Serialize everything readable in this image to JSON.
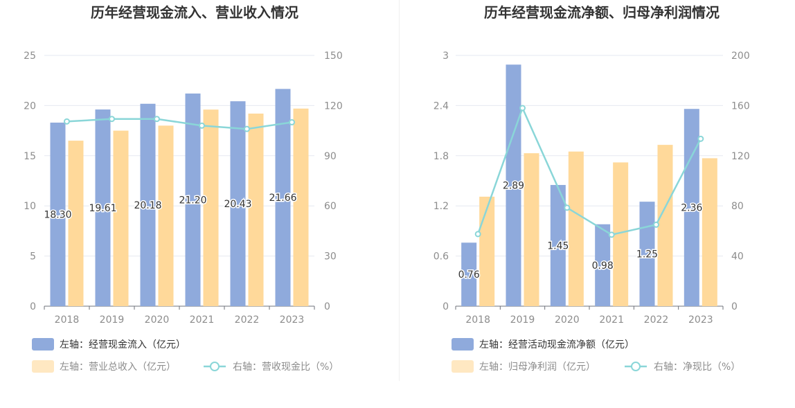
{
  "charts": [
    {
      "title": "历年经营现金流入、营业收入情况",
      "chart_data": {
        "type": "bar",
        "categories": [
          "2018",
          "2019",
          "2020",
          "2021",
          "2022",
          "2023"
        ],
        "left_axis": {
          "ylim": [
            0,
            25
          ],
          "ticks": [
            "0",
            "5",
            "10",
            "15",
            "20",
            "25"
          ]
        },
        "right_axis": {
          "ylim": [
            0,
            150
          ],
          "ticks": [
            "0",
            "30",
            "60",
            "90",
            "120",
            "150"
          ]
        },
        "grid": true,
        "legend_position": "bottom",
        "series": [
          {
            "name": "左轴：经营现金流入（亿元）",
            "type": "bar",
            "axis": "left",
            "color": "#8faadc",
            "values": [
              18.3,
              19.61,
              20.18,
              21.2,
              20.43,
              21.66
            ],
            "labels": [
              "18.30",
              "19.61",
              "20.18",
              "21.20",
              "20.43",
              "21.66"
            ]
          },
          {
            "name": "左轴：营业总收入（亿元）",
            "type": "bar",
            "axis": "left",
            "color": "#ffd99a",
            "values": [
              16.5,
              17.5,
              18.0,
              19.6,
              19.2,
              19.7
            ]
          },
          {
            "name": "右轴：营收现金比（%）",
            "type": "line",
            "axis": "right",
            "color": "#8ad6d8",
            "values": [
              110.5,
              112.0,
              112.0,
              108.0,
              106.0,
              110.0
            ]
          }
        ]
      }
    },
    {
      "title": "历年经营现金流净额、归母净利润情况",
      "chart_data": {
        "type": "bar",
        "categories": [
          "2018",
          "2019",
          "2020",
          "2021",
          "2022",
          "2023"
        ],
        "left_axis": {
          "ylim": [
            0,
            3
          ],
          "ticks": [
            "0",
            "0.6",
            "1.2",
            "1.8",
            "2.4",
            "3"
          ]
        },
        "right_axis": {
          "ylim": [
            0,
            200
          ],
          "ticks": [
            "0",
            "40",
            "80",
            "120",
            "160",
            "200"
          ]
        },
        "grid": true,
        "legend_position": "bottom",
        "series": [
          {
            "name": "左轴：经营活动现金流净额（亿元）",
            "type": "bar",
            "axis": "left",
            "color": "#8faadc",
            "values": [
              0.76,
              2.89,
              1.45,
              0.98,
              1.25,
              2.36
            ],
            "labels": [
              "0.76",
              "2.89",
              "1.45",
              "0.98",
              "1.25",
              "2.36"
            ]
          },
          {
            "name": "左轴：归母净利润（亿元）",
            "type": "bar",
            "axis": "left",
            "color": "#ffd99a",
            "values": [
              1.31,
              1.83,
              1.85,
              1.72,
              1.93,
              1.77
            ]
          },
          {
            "name": "右轴：净现比（%）",
            "type": "line",
            "axis": "right",
            "color": "#8ad6d8",
            "values": [
              57.5,
              158.0,
              78.5,
              57.0,
              65.0,
              133.5
            ]
          }
        ]
      }
    }
  ]
}
